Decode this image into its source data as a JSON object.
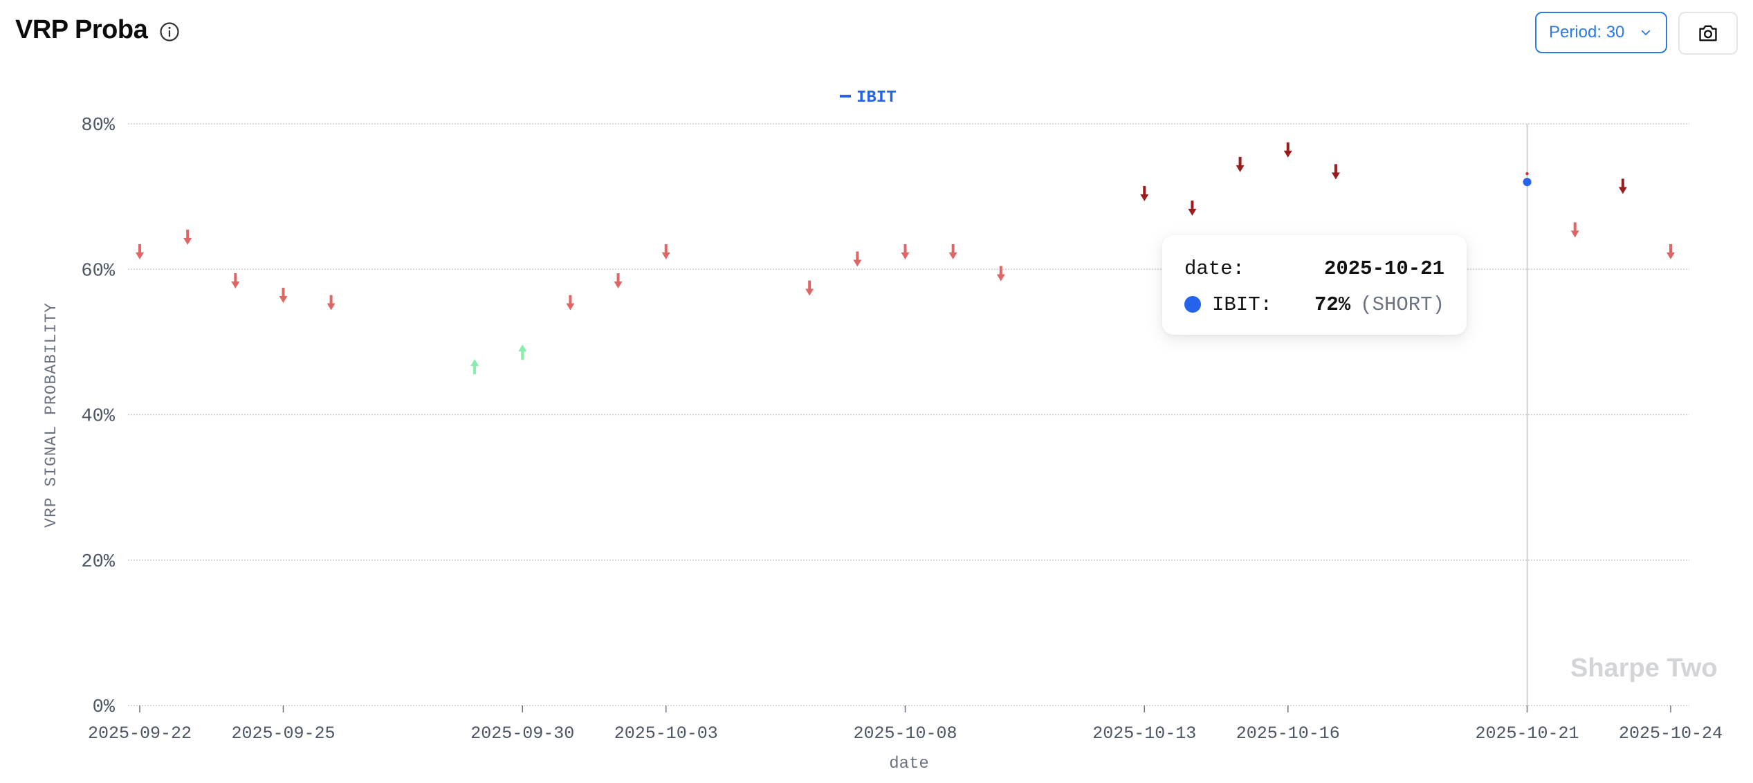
{
  "header": {
    "title": "VRP Proba",
    "info_icon": "info-circle-icon"
  },
  "controls": {
    "period_label": "Period: 30",
    "period_icon": "chevron-down-icon",
    "camera_icon": "camera-icon"
  },
  "watermark": "Sharpe Two",
  "tooltip": {
    "date_key": "date:",
    "date_value": "2025-10-21",
    "series_key": "IBIT:",
    "series_value": "72%",
    "signal": "(SHORT)",
    "dot_color": "#2563eb"
  },
  "colors": {
    "short_light": "#e06666",
    "short_dark": "#9b1c1c",
    "long": "#86efac",
    "highlight": "#2563eb",
    "accent": "#2a7be4"
  },
  "chart_data": {
    "type": "scatter",
    "title": "",
    "xlabel": "date",
    "ylabel": "VRP SIGNAL PROBABILITY",
    "ylim": [
      0,
      80
    ],
    "y_unit": "%",
    "grid": true,
    "legend": "top-center",
    "x_tick_labels": [
      "2025-09-22",
      "2025-09-25",
      "2025-09-30",
      "2025-10-03",
      "2025-10-08",
      "2025-10-13",
      "2025-10-16",
      "2025-10-21",
      "2025-10-24"
    ],
    "y_tick_labels": [
      "0%",
      "20%",
      "40%",
      "60%",
      "80%"
    ],
    "y_ticks": [
      0,
      20,
      40,
      60,
      80
    ],
    "series": [
      {
        "name": "IBIT",
        "color": "#2563eb",
        "points": [
          {
            "date": "2025-09-22",
            "value": 62.5,
            "signal": "SHORT"
          },
          {
            "date": "2025-09-23",
            "value": 64.5,
            "signal": "SHORT"
          },
          {
            "date": "2025-09-24",
            "value": 58.5,
            "signal": "SHORT"
          },
          {
            "date": "2025-09-25",
            "value": 56.5,
            "signal": "SHORT"
          },
          {
            "date": "2025-09-26",
            "value": 55.5,
            "signal": "SHORT"
          },
          {
            "date": "2025-09-29",
            "value": 46.5,
            "signal": "LONG"
          },
          {
            "date": "2025-09-30",
            "value": 48.5,
            "signal": "LONG"
          },
          {
            "date": "2025-10-01",
            "value": 55.5,
            "signal": "SHORT"
          },
          {
            "date": "2025-10-02",
            "value": 58.5,
            "signal": "SHORT"
          },
          {
            "date": "2025-10-03",
            "value": 62.5,
            "signal": "SHORT"
          },
          {
            "date": "2025-10-06",
            "value": 57.5,
            "signal": "SHORT"
          },
          {
            "date": "2025-10-07",
            "value": 61.5,
            "signal": "SHORT"
          },
          {
            "date": "2025-10-08",
            "value": 62.5,
            "signal": "SHORT"
          },
          {
            "date": "2025-10-09",
            "value": 62.5,
            "signal": "SHORT"
          },
          {
            "date": "2025-10-10",
            "value": 59.5,
            "signal": "SHORT"
          },
          {
            "date": "2025-10-13",
            "value": 70.5,
            "signal": "SHORT"
          },
          {
            "date": "2025-10-14",
            "value": 68.5,
            "signal": "SHORT"
          },
          {
            "date": "2025-10-15",
            "value": 74.5,
            "signal": "SHORT"
          },
          {
            "date": "2025-10-16",
            "value": 76.5,
            "signal": "SHORT"
          },
          {
            "date": "2025-10-17",
            "value": 73.5,
            "signal": "SHORT"
          },
          {
            "date": "2025-10-21",
            "value": 72,
            "signal": "SHORT"
          },
          {
            "date": "2025-10-22",
            "value": 65.5,
            "signal": "SHORT"
          },
          {
            "date": "2025-10-23",
            "value": 71.5,
            "signal": "SHORT"
          },
          {
            "date": "2025-10-24",
            "value": 62.5,
            "signal": "SHORT"
          }
        ]
      }
    ],
    "highlighted_date": "2025-10-21"
  }
}
